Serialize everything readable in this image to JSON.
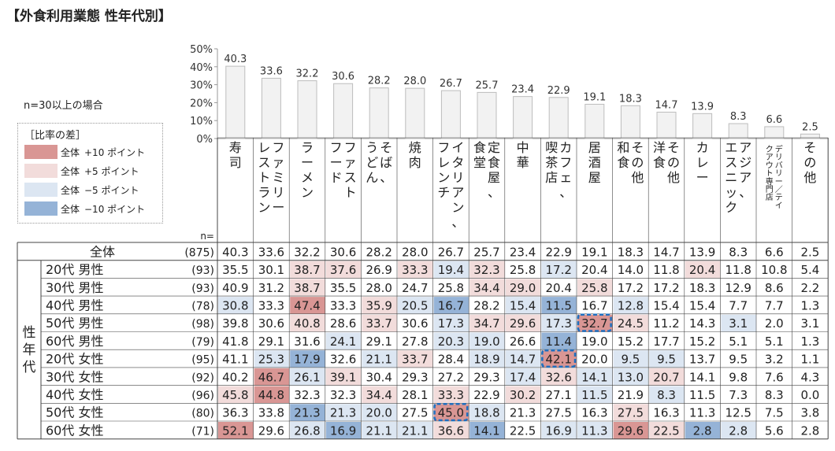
{
  "title": "【外食利用業態 性年代別】",
  "note": "n=30以上の場合",
  "legend": {
    "title": "［比率の差］",
    "items": [
      {
        "total": "全体",
        "value": "+10 ポイント",
        "color": "#d99694"
      },
      {
        "total": "全体",
        "value": "+5 ポイント",
        "color": "#f2dcdb"
      },
      {
        "total": "全体",
        "value": "−5 ポイント",
        "color": "#dce6f2"
      },
      {
        "total": "全体",
        "value": "−10 ポイント",
        "color": "#95b3d7"
      }
    ]
  },
  "colors": {
    "plus10": "#d99694",
    "plus5": "#f2dcdb",
    "minus5": "#dce6f2",
    "minus10": "#95b3d7",
    "bar": "#f2f2f2",
    "highlight": "#1f6fbf"
  },
  "chart_data": {
    "type": "bar",
    "ylim": [
      0,
      50
    ],
    "y_ticks": [
      "0%",
      "10%",
      "20%",
      "30%",
      "40%",
      "50%"
    ],
    "categories": [
      "寿司",
      "ファミリーレストラン",
      "ラーメン",
      "ファストフード",
      "そば、うどん",
      "焼肉",
      "イタリアン、フレンチ",
      "定食屋、食堂",
      "中華",
      "カフェ、喫茶店",
      "居酒屋",
      "その他和食",
      "その他洋食",
      "カレー",
      "アジア、エスニック",
      "デリバリー／テイクアウト専門店",
      "その他"
    ],
    "category_columns": [
      [
        "寿司"
      ],
      [
        "ファミリー",
        "レストラン"
      ],
      [
        "ラーメン"
      ],
      [
        "ファスト",
        "フード"
      ],
      [
        "そば、",
        "うどん"
      ],
      [
        "焼肉"
      ],
      [
        "イタリアン、",
        "フレンチ"
      ],
      [
        "定食屋、",
        "食堂"
      ],
      [
        "中華"
      ],
      [
        "カフェ、",
        "喫茶店"
      ],
      [
        "居酒屋"
      ],
      [
        "その他",
        "和食"
      ],
      [
        "その他",
        "洋食"
      ],
      [
        "カレー"
      ],
      [
        "アジア、",
        "エスニック"
      ],
      [
        "デリバリー／テイ",
        "クアウト専門店"
      ],
      [
        "その他"
      ]
    ],
    "values": [
      40.3,
      33.6,
      32.2,
      30.6,
      28.2,
      28.0,
      26.7,
      25.7,
      23.4,
      22.9,
      19.1,
      18.3,
      14.7,
      13.9,
      8.3,
      6.6,
      2.5
    ],
    "table": {
      "n_label": "n=",
      "group_label": "性年代",
      "total_row": {
        "label": "全体",
        "n": "(875)",
        "values": [
          40.3,
          33.6,
          32.2,
          30.6,
          28.2,
          28.0,
          26.7,
          25.7,
          23.4,
          22.9,
          19.1,
          18.3,
          14.7,
          13.9,
          8.3,
          6.6,
          2.5
        ]
      },
      "rows": [
        {
          "label": "20代 男性",
          "n": "(93)",
          "values": [
            35.5,
            30.1,
            38.7,
            37.6,
            26.9,
            33.3,
            19.4,
            32.3,
            25.8,
            17.2,
            20.4,
            14.0,
            11.8,
            20.4,
            11.8,
            10.8,
            5.4
          ]
        },
        {
          "label": "30代 男性",
          "n": "(93)",
          "values": [
            40.9,
            31.2,
            38.7,
            35.5,
            28.0,
            24.7,
            25.8,
            34.4,
            29.0,
            20.4,
            25.8,
            17.2,
            17.2,
            18.3,
            12.9,
            8.6,
            2.2
          ]
        },
        {
          "label": "40代 男性",
          "n": "(78)",
          "values": [
            30.8,
            33.3,
            47.4,
            33.3,
            35.9,
            20.5,
            16.7,
            28.2,
            15.4,
            11.5,
            16.7,
            12.8,
            15.4,
            15.4,
            7.7,
            7.7,
            1.3
          ]
        },
        {
          "label": "50代 男性",
          "n": "(98)",
          "values": [
            39.8,
            30.6,
            40.8,
            28.6,
            33.7,
            30.6,
            17.3,
            34.7,
            29.6,
            17.3,
            32.7,
            24.5,
            11.2,
            14.3,
            3.1,
            2.0,
            3.1
          ]
        },
        {
          "label": "60代 男性",
          "n": "(79)",
          "values": [
            41.8,
            29.1,
            31.6,
            24.1,
            29.1,
            27.8,
            20.3,
            19.0,
            26.6,
            11.4,
            19.0,
            15.2,
            17.7,
            15.2,
            5.1,
            5.1,
            1.3
          ]
        },
        {
          "label": "20代 女性",
          "n": "(95)",
          "values": [
            41.1,
            25.3,
            17.9,
            32.6,
            21.1,
            33.7,
            28.4,
            18.9,
            14.7,
            42.1,
            20.0,
            9.5,
            9.5,
            13.7,
            9.5,
            3.2,
            1.1
          ]
        },
        {
          "label": "30代 女性",
          "n": "(92)",
          "values": [
            40.2,
            46.7,
            26.1,
            39.1,
            30.4,
            29.3,
            27.2,
            29.3,
            17.4,
            32.6,
            14.1,
            13.0,
            20.7,
            14.1,
            9.8,
            7.6,
            4.3
          ]
        },
        {
          "label": "40代 女性",
          "n": "(96)",
          "values": [
            45.8,
            44.8,
            32.3,
            32.3,
            34.4,
            28.1,
            33.3,
            22.9,
            30.2,
            27.1,
            11.5,
            21.9,
            8.3,
            11.5,
            7.3,
            8.3,
            0.0
          ]
        },
        {
          "label": "50代 女性",
          "n": "(80)",
          "values": [
            36.3,
            33.8,
            21.3,
            21.3,
            20.0,
            27.5,
            45.0,
            18.8,
            21.3,
            27.5,
            16.3,
            27.5,
            16.3,
            11.3,
            12.5,
            7.5,
            3.8
          ]
        },
        {
          "label": "60代 女性",
          "n": "(71)",
          "values": [
            52.1,
            29.6,
            26.8,
            16.9,
            21.1,
            21.1,
            36.6,
            14.1,
            22.5,
            16.9,
            11.3,
            29.6,
            22.5,
            2.8,
            2.8,
            5.6,
            2.8
          ]
        }
      ],
      "highlights": [
        [
          3,
          10
        ],
        [
          5,
          9
        ],
        [
          8,
          6
        ]
      ]
    }
  }
}
